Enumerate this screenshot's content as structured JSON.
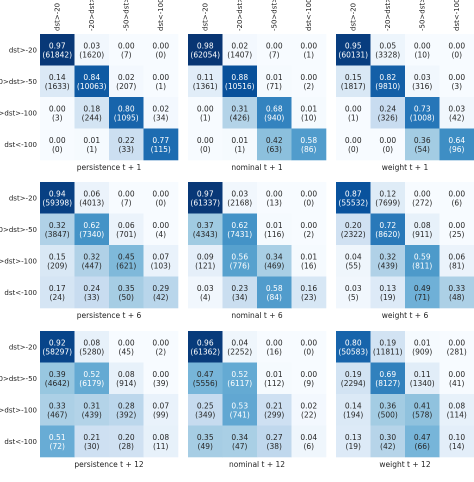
{
  "labels": [
    "dst>-20",
    "-20>dst>-50",
    "-50>dst>-100",
    "dst<-100"
  ],
  "colormap": {
    "low": "#f7fbff",
    "high": "#08306b"
  },
  "chart_data": [
    {
      "type": "heatmap",
      "xlabel": "persistence t + 1",
      "values": [
        [
          0.97,
          0.03,
          0.0,
          0.0
        ],
        [
          0.14,
          0.84,
          0.02,
          0.0
        ],
        [
          0.0,
          0.18,
          0.8,
          0.02
        ],
        [
          0.0,
          0.01,
          0.22,
          0.77
        ]
      ],
      "counts": [
        [
          61842,
          1620,
          7,
          0
        ],
        [
          1633,
          10063,
          207,
          1
        ],
        [
          3,
          244,
          1095,
          34
        ],
        [
          0,
          1,
          33,
          115
        ]
      ]
    },
    {
      "type": "heatmap",
      "xlabel": "nominal t + 1",
      "values": [
        [
          0.98,
          0.02,
          0.0,
          0.0
        ],
        [
          0.11,
          0.88,
          0.01,
          0.0
        ],
        [
          0.0,
          0.31,
          0.68,
          0.01
        ],
        [
          0.0,
          0.01,
          0.42,
          0.58
        ]
      ],
      "counts": [
        [
          62054,
          1407,
          7,
          1
        ],
        [
          1361,
          10516,
          71,
          2
        ],
        [
          1,
          426,
          940,
          10
        ],
        [
          0,
          1,
          63,
          86
        ]
      ]
    },
    {
      "type": "heatmap",
      "xlabel": "weight t + 1",
      "values": [
        [
          0.95,
          0.05,
          0.0,
          0.0
        ],
        [
          0.15,
          0.82,
          0.03,
          0.0
        ],
        [
          0.0,
          0.24,
          0.73,
          0.03
        ],
        [
          0.0,
          0.0,
          0.36,
          0.64
        ]
      ],
      "counts": [
        [
          60131,
          3328,
          10,
          0
        ],
        [
          1817,
          9810,
          316,
          3
        ],
        [
          1,
          326,
          1008,
          42
        ],
        [
          0,
          0,
          54,
          96
        ]
      ]
    },
    {
      "type": "heatmap",
      "xlabel": "persistence t + 6",
      "values": [
        [
          0.94,
          0.06,
          0.0,
          0.0
        ],
        [
          0.32,
          0.62,
          0.06,
          0.0
        ],
        [
          0.15,
          0.32,
          0.45,
          0.07
        ],
        [
          0.17,
          0.24,
          0.35,
          0.29
        ]
      ],
      "counts": [
        [
          59398,
          4013,
          7,
          0
        ],
        [
          3847,
          7340,
          701,
          4
        ],
        [
          209,
          447,
          621,
          103
        ],
        [
          24,
          33,
          50,
          42
        ]
      ]
    },
    {
      "type": "heatmap",
      "xlabel": "nominal t + 6",
      "values": [
        [
          0.97,
          0.03,
          0.0,
          0.0
        ],
        [
          0.37,
          0.62,
          0.01,
          0.0
        ],
        [
          0.09,
          0.56,
          0.34,
          0.01
        ],
        [
          0.03,
          0.23,
          0.58,
          0.16
        ]
      ],
      "counts": [
        [
          61337,
          2168,
          13,
          0
        ],
        [
          4343,
          7431,
          116,
          2
        ],
        [
          121,
          776,
          469,
          16
        ],
        [
          4,
          34,
          84,
          23
        ]
      ]
    },
    {
      "type": "heatmap",
      "xlabel": "weight t + 6",
      "values": [
        [
          0.87,
          0.12,
          0.0,
          0.0
        ],
        [
          0.2,
          0.72,
          0.08,
          0.0
        ],
        [
          0.04,
          0.32,
          0.59,
          0.06
        ],
        [
          0.03,
          0.13,
          0.49,
          0.33
        ]
      ],
      "counts": [
        [
          55532,
          7699,
          272,
          6
        ],
        [
          2322,
          8620,
          911,
          25
        ],
        [
          55,
          439,
          811,
          81
        ],
        [
          5,
          19,
          71,
          48
        ]
      ]
    },
    {
      "type": "heatmap",
      "xlabel": "persistence t + 12",
      "values": [
        [
          0.92,
          0.08,
          0.0,
          0.0
        ],
        [
          0.39,
          0.52,
          0.08,
          0.0
        ],
        [
          0.33,
          0.31,
          0.28,
          0.07
        ],
        [
          0.51,
          0.21,
          0.2,
          0.08
        ]
      ],
      "counts": [
        [
          58297,
          5280,
          45,
          2
        ],
        [
          4642,
          6179,
          914,
          39
        ],
        [
          467,
          439,
          392,
          99
        ],
        [
          72,
          30,
          28,
          11
        ]
      ]
    },
    {
      "type": "heatmap",
      "xlabel": "nominal t + 12",
      "values": [
        [
          0.96,
          0.04,
          0.0,
          0.0
        ],
        [
          0.47,
          0.52,
          0.01,
          0.0
        ],
        [
          0.25,
          0.53,
          0.21,
          0.02
        ],
        [
          0.35,
          0.34,
          0.27,
          0.04
        ]
      ],
      "counts": [
        [
          61362,
          2252,
          16,
          0
        ],
        [
          5556,
          6117,
          112,
          9
        ],
        [
          349,
          741,
          299,
          22
        ],
        [
          49,
          47,
          38,
          6
        ]
      ]
    },
    {
      "type": "heatmap",
      "xlabel": "weight t + 12",
      "values": [
        [
          0.8,
          0.19,
          0.01,
          0.0
        ],
        [
          0.19,
          0.69,
          0.11,
          0.0
        ],
        [
          0.14,
          0.36,
          0.41,
          0.08
        ],
        [
          0.13,
          0.3,
          0.47,
          0.1
        ]
      ],
      "counts": [
        [
          50583,
          11811,
          909,
          281
        ],
        [
          2294,
          8127,
          1340,
          41
        ],
        [
          194,
          500,
          578,
          114
        ],
        [
          19,
          42,
          66,
          14
        ]
      ]
    }
  ]
}
